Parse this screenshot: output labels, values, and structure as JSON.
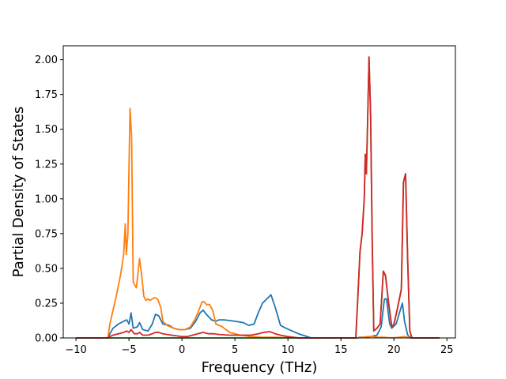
{
  "chart_data": {
    "type": "line",
    "title": "",
    "xlabel": "Frequency (THz)",
    "ylabel": "Partial Density of States",
    "xlim": [
      -11.2,
      25.8
    ],
    "ylim": [
      0,
      2.1
    ],
    "xticks": [
      -10,
      -5,
      0,
      5,
      10,
      15,
      20,
      25
    ],
    "xtick_labels": [
      "−10",
      "−5",
      "0",
      "5",
      "10",
      "15",
      "20",
      "25"
    ],
    "yticks": [
      0,
      0.25,
      0.5,
      0.75,
      1.0,
      1.25,
      1.5,
      1.75,
      2.0
    ],
    "ytick_labels": [
      "0.00",
      "0.25",
      "0.50",
      "0.75",
      "1.00",
      "1.25",
      "1.50",
      "1.75",
      "2.00"
    ],
    "grid": false,
    "series": [
      {
        "color": "#1f77b4",
        "points": [
          [
            -10,
            0
          ],
          [
            -7,
            0
          ],
          [
            -6.8,
            0.03
          ],
          [
            -6.5,
            0.07
          ],
          [
            -6,
            0.1
          ],
          [
            -5.5,
            0.12
          ],
          [
            -5.2,
            0.13
          ],
          [
            -5.0,
            0.1
          ],
          [
            -4.8,
            0.18
          ],
          [
            -4.6,
            0.07
          ],
          [
            -4.2,
            0.08
          ],
          [
            -4.0,
            0.11
          ],
          [
            -3.7,
            0.06
          ],
          [
            -3.2,
            0.05
          ],
          [
            -2.8,
            0.1
          ],
          [
            -2.5,
            0.17
          ],
          [
            -2.2,
            0.16
          ],
          [
            -1.8,
            0.1
          ],
          [
            -1.2,
            0.09
          ],
          [
            -0.8,
            0.07
          ],
          [
            -0.3,
            0.06
          ],
          [
            0.3,
            0.06
          ],
          [
            0.8,
            0.07
          ],
          [
            1.3,
            0.12
          ],
          [
            1.7,
            0.18
          ],
          [
            2.0,
            0.2
          ],
          [
            2.3,
            0.17
          ],
          [
            2.8,
            0.13
          ],
          [
            3.2,
            0.12
          ],
          [
            3.5,
            0.13
          ],
          [
            4.0,
            0.13
          ],
          [
            5.0,
            0.12
          ],
          [
            5.8,
            0.11
          ],
          [
            6.3,
            0.09
          ],
          [
            6.8,
            0.1
          ],
          [
            7.2,
            0.18
          ],
          [
            7.6,
            0.25
          ],
          [
            8.0,
            0.28
          ],
          [
            8.4,
            0.31
          ],
          [
            8.8,
            0.22
          ],
          [
            9.3,
            0.09
          ],
          [
            9.8,
            0.07
          ],
          [
            11,
            0.03
          ],
          [
            11.8,
            0.01
          ],
          [
            12.2,
            0
          ],
          [
            16.5,
            0
          ],
          [
            16.8,
            0.005
          ],
          [
            17.3,
            0.005
          ],
          [
            17.8,
            0.01
          ],
          [
            18.4,
            0.02
          ],
          [
            18.8,
            0.08
          ],
          [
            19.1,
            0.28
          ],
          [
            19.3,
            0.28
          ],
          [
            19.6,
            0.1
          ],
          [
            19.8,
            0.07
          ],
          [
            20.2,
            0.1
          ],
          [
            20.8,
            0.25
          ],
          [
            21.0,
            0.12
          ],
          [
            21.3,
            0.02
          ],
          [
            21.6,
            0
          ],
          [
            24.3,
            0
          ]
        ]
      },
      {
        "color": "#ff7f0e",
        "points": [
          [
            -10,
            0
          ],
          [
            -7,
            0
          ],
          [
            -6.8,
            0.1
          ],
          [
            -6.5,
            0.2
          ],
          [
            -6.2,
            0.3
          ],
          [
            -5.8,
            0.45
          ],
          [
            -5.5,
            0.6
          ],
          [
            -5.35,
            0.82
          ],
          [
            -5.25,
            0.6
          ],
          [
            -5.1,
            0.75
          ],
          [
            -4.9,
            1.65
          ],
          [
            -4.75,
            1.45
          ],
          [
            -4.6,
            0.4
          ],
          [
            -4.3,
            0.36
          ],
          [
            -4.0,
            0.57
          ],
          [
            -3.8,
            0.45
          ],
          [
            -3.6,
            0.3
          ],
          [
            -3.4,
            0.27
          ],
          [
            -3.2,
            0.28
          ],
          [
            -3.0,
            0.27
          ],
          [
            -2.8,
            0.28
          ],
          [
            -2.6,
            0.29
          ],
          [
            -2.3,
            0.28
          ],
          [
            -2.0,
            0.22
          ],
          [
            -1.8,
            0.12
          ],
          [
            -1.4,
            0.09
          ],
          [
            -0.8,
            0.07
          ],
          [
            -0.3,
            0.06
          ],
          [
            0.3,
            0.06
          ],
          [
            0.8,
            0.08
          ],
          [
            1.2,
            0.13
          ],
          [
            1.6,
            0.2
          ],
          [
            1.9,
            0.26
          ],
          [
            2.1,
            0.26
          ],
          [
            2.3,
            0.24
          ],
          [
            2.6,
            0.24
          ],
          [
            2.9,
            0.2
          ],
          [
            3.2,
            0.1
          ],
          [
            3.8,
            0.08
          ],
          [
            4.5,
            0.04
          ],
          [
            5.5,
            0.02
          ],
          [
            6.5,
            0.01
          ],
          [
            7.5,
            0.005
          ],
          [
            8.5,
            0.005
          ],
          [
            9.5,
            0.003
          ],
          [
            10.5,
            0.002
          ],
          [
            11.5,
            0
          ],
          [
            16.5,
            0
          ],
          [
            17,
            0.005
          ],
          [
            17.5,
            0.01
          ],
          [
            18,
            0.01
          ],
          [
            18.5,
            0.005
          ],
          [
            19,
            0.005
          ],
          [
            19.5,
            0.002
          ],
          [
            20,
            0.001
          ],
          [
            20.5,
            0.005
          ],
          [
            21,
            0.01
          ],
          [
            21.5,
            0
          ],
          [
            24.3,
            0
          ]
        ]
      },
      {
        "color": "#2ca02c",
        "points": [
          [
            -10,
            0
          ],
          [
            16.4,
            0
          ],
          [
            16.6,
            0.3
          ],
          [
            16.8,
            0.62
          ],
          [
            17.0,
            0.75
          ],
          [
            17.2,
            1.0
          ],
          [
            17.3,
            1.32
          ],
          [
            17.4,
            1.18
          ],
          [
            17.5,
            1.5
          ],
          [
            17.65,
            2.02
          ],
          [
            17.8,
            1.6
          ],
          [
            17.95,
            0.7
          ],
          [
            18.1,
            0.05
          ],
          [
            18.4,
            0.07
          ],
          [
            18.7,
            0.1
          ],
          [
            19.0,
            0.48
          ],
          [
            19.2,
            0.45
          ],
          [
            19.5,
            0.25
          ],
          [
            19.8,
            0.08
          ],
          [
            20.0,
            0.1
          ],
          [
            20.3,
            0.2
          ],
          [
            20.7,
            0.35
          ],
          [
            20.9,
            1.12
          ],
          [
            21.1,
            1.18
          ],
          [
            21.3,
            0.55
          ],
          [
            21.5,
            0.05
          ],
          [
            21.7,
            0
          ],
          [
            24.3,
            0
          ]
        ]
      },
      {
        "color": "#d62728",
        "points": [
          [
            -10,
            0
          ],
          [
            -7,
            0
          ],
          [
            -6.8,
            0.01
          ],
          [
            -6.5,
            0.02
          ],
          [
            -6,
            0.03
          ],
          [
            -5.5,
            0.04
          ],
          [
            -5.2,
            0.05
          ],
          [
            -5,
            0.04
          ],
          [
            -4.8,
            0.06
          ],
          [
            -4.5,
            0.03
          ],
          [
            -4.2,
            0.03
          ],
          [
            -4,
            0.04
          ],
          [
            -3.7,
            0.02
          ],
          [
            -3.2,
            0.02
          ],
          [
            -2.8,
            0.03
          ],
          [
            -2.5,
            0.04
          ],
          [
            -2.2,
            0.04
          ],
          [
            -1.8,
            0.03
          ],
          [
            -1,
            0.02
          ],
          [
            0,
            0.01
          ],
          [
            0.5,
            0.01
          ],
          [
            1,
            0.02
          ],
          [
            1.5,
            0.03
          ],
          [
            2,
            0.04
          ],
          [
            2.5,
            0.03
          ],
          [
            3,
            0.03
          ],
          [
            3.5,
            0.025
          ],
          [
            4.5,
            0.02
          ],
          [
            5.5,
            0.02
          ],
          [
            6.5,
            0.02
          ],
          [
            7.2,
            0.03
          ],
          [
            7.7,
            0.04
          ],
          [
            8.3,
            0.045
          ],
          [
            8.8,
            0.03
          ],
          [
            9.3,
            0.02
          ],
          [
            10,
            0.01
          ],
          [
            10.5,
            0.005
          ],
          [
            11,
            0
          ],
          [
            16.4,
            0
          ],
          [
            16.6,
            0.3
          ],
          [
            16.8,
            0.62
          ],
          [
            17.0,
            0.75
          ],
          [
            17.2,
            1.0
          ],
          [
            17.3,
            1.32
          ],
          [
            17.4,
            1.18
          ],
          [
            17.5,
            1.5
          ],
          [
            17.65,
            2.02
          ],
          [
            17.8,
            1.6
          ],
          [
            17.95,
            0.7
          ],
          [
            18.1,
            0.05
          ],
          [
            18.4,
            0.07
          ],
          [
            18.7,
            0.1
          ],
          [
            19.0,
            0.48
          ],
          [
            19.2,
            0.45
          ],
          [
            19.5,
            0.25
          ],
          [
            19.8,
            0.08
          ],
          [
            20.0,
            0.1
          ],
          [
            20.3,
            0.2
          ],
          [
            20.7,
            0.35
          ],
          [
            20.9,
            1.12
          ],
          [
            21.1,
            1.18
          ],
          [
            21.3,
            0.55
          ],
          [
            21.5,
            0.05
          ],
          [
            21.7,
            0
          ],
          [
            24.3,
            0
          ]
        ]
      }
    ]
  }
}
